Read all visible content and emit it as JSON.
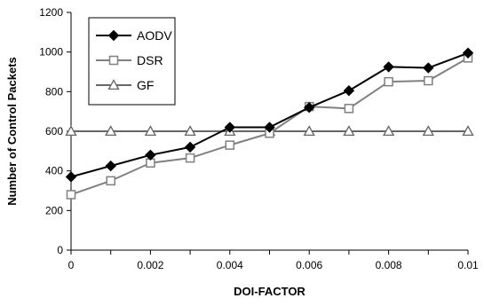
{
  "chart_data": {
    "type": "line",
    "xlabel": "DOI-FACTOR",
    "ylabel": "Number of Control Packets",
    "xlim": [
      0,
      0.01
    ],
    "ylim": [
      0,
      1200
    ],
    "x_ticks": [
      "0",
      "0.002",
      "0.004",
      "0.006",
      "0.008",
      "0.01"
    ],
    "y_ticks": [
      "0",
      "200",
      "400",
      "600",
      "800",
      "1000",
      "1200"
    ],
    "grid": false,
    "legend_position": "top-left",
    "x": [
      0,
      0.001,
      0.002,
      0.003,
      0.004,
      0.005,
      0.006,
      0.007,
      0.008,
      0.009,
      0.01
    ],
    "series": [
      {
        "name": "AODV",
        "marker": "diamond",
        "color": "#000000",
        "values": [
          370,
          425,
          480,
          520,
          620,
          620,
          720,
          805,
          925,
          920,
          995
        ]
      },
      {
        "name": "DSR",
        "marker": "square",
        "color": "#808080",
        "values": [
          280,
          350,
          440,
          465,
          530,
          590,
          725,
          715,
          850,
          855,
          970
        ]
      },
      {
        "name": "GF",
        "marker": "triangle",
        "color": "#666666",
        "values": [
          600,
          600,
          600,
          600,
          600,
          600,
          600,
          600,
          600,
          600,
          600
        ]
      }
    ]
  }
}
